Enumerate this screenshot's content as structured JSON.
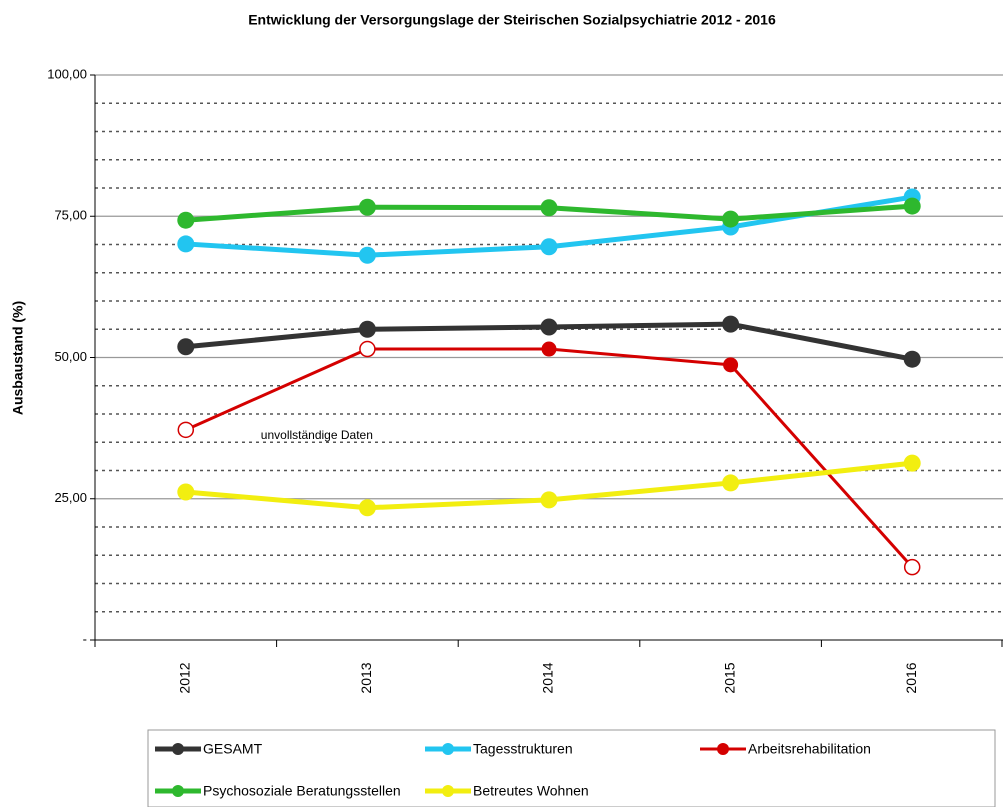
{
  "chart_data": {
    "type": "line",
    "title": "Entwicklung der Versorgungslage der Steirischen Sozialpsychiatrie 2012 - 2016",
    "y_label": "Ausbaustand (%)",
    "categories": [
      "2012",
      "2013",
      "2014",
      "2015",
      "2016"
    ],
    "series": [
      {
        "name": "GESAMT",
        "color": "#333333",
        "values": [
          51.9,
          55.0,
          55.4,
          55.9,
          49.7
        ]
      },
      {
        "name": "Tagesstrukturen",
        "color": "#22c5f0",
        "values": [
          70.1,
          68.1,
          69.6,
          73.1,
          78.4
        ]
      },
      {
        "name": "Arbeitsrehabilitation",
        "color": "#d40000",
        "values": [
          37.2,
          51.5,
          51.5,
          48.7,
          12.9
        ],
        "open_markers": [
          true,
          true,
          false,
          false,
          true
        ]
      },
      {
        "name": "Psychosoziale Beratungsstellen",
        "color": "#2eb82e",
        "values": [
          74.3,
          76.6,
          76.5,
          74.5,
          76.8
        ]
      },
      {
        "name": "Betreutes Wohnen",
        "color": "#f2ee10",
        "values": [
          26.2,
          23.4,
          24.8,
          27.8,
          31.3
        ]
      }
    ],
    "annotations": [
      {
        "text": "unvollständige Daten",
        "series": 2,
        "index": 0
      }
    ],
    "ylim": [
      0,
      100
    ],
    "yticks": [
      {
        "value": 0,
        "label": "-"
      },
      {
        "value": 25,
        "label": "25,00"
      },
      {
        "value": 50,
        "label": "50,00"
      },
      {
        "value": 75,
        "label": "75,00"
      },
      {
        "value": 100,
        "label": "100,00"
      }
    ],
    "minor_yticks": [
      5,
      10,
      15,
      20,
      30,
      35,
      40,
      45,
      55,
      60,
      65,
      70,
      80,
      85,
      90,
      95
    ],
    "grid": true,
    "legend": "bottom"
  }
}
